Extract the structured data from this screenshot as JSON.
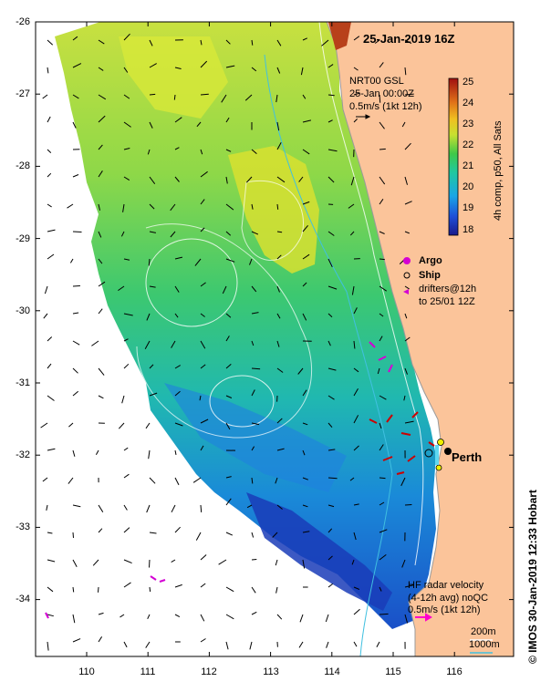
{
  "map": {
    "title": "25-Jan-2019 16Z",
    "credit": "© IMOS 30-Jan-2019 12:33 Hobart",
    "y_ticks": [
      "-26",
      "-27",
      "-28",
      "-29",
      "-30",
      "-31",
      "-32",
      "-33",
      "-34"
    ],
    "x_ticks": [
      "110",
      "111",
      "112",
      "113",
      "114",
      "115",
      "116"
    ],
    "lon_range": [
      109.25,
      117.0
    ],
    "lat_range": [
      -34.8,
      -26.0
    ],
    "colors": {
      "land": "#fbc49a",
      "coast": "#9a9a9a",
      "drifter": "#cc0000",
      "argo": "#d400d4",
      "radar_arrow": "#ff00cc",
      "scale_arrow": "#000000",
      "isobath": "#40c0e0"
    },
    "places": {
      "perth": "Perth"
    }
  },
  "gsl": {
    "label": "NRT00 GSL",
    "date": "25-Jan 00:00Z",
    "scale": "0.5m/s (1kt 12h)"
  },
  "colorbar": {
    "ticks": [
      "25",
      "24",
      "23",
      "22",
      "21",
      "20",
      "19",
      "18"
    ],
    "min": 18,
    "max": 25.3,
    "label": "4h comp, p50, All Sats"
  },
  "legend": {
    "argo": "Argo",
    "ship": "Ship",
    "drifters_line1": "drifters@12h",
    "drifters_line2": "to 25/01 12Z"
  },
  "radar": {
    "title_line1": "HF radar velocity",
    "title_line2": "(4-12h avg) noQC",
    "scale": "0.5m/s (1kt 12h)"
  },
  "isobaths": {
    "shallow": "200m",
    "deep": "1000m"
  }
}
